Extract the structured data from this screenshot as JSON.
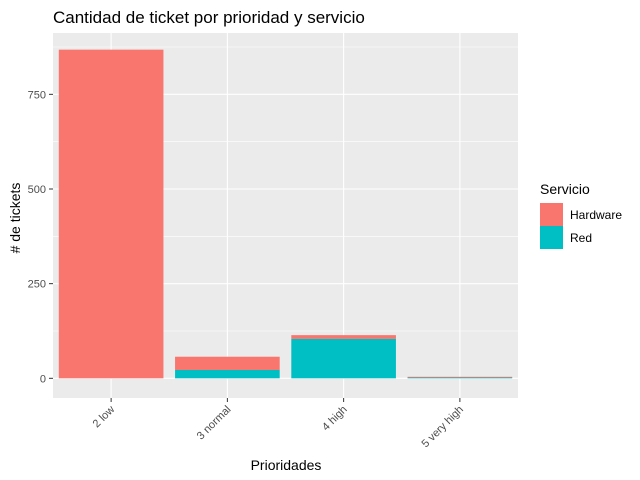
{
  "chart_data": {
    "type": "bar",
    "stacked": true,
    "title": "Cantidad de ticket por prioridad y servicio",
    "xlabel": "Prioridades",
    "ylabel": "# de tickets",
    "categories": [
      "2 low",
      "3 normal",
      "4 high",
      "5 very high"
    ],
    "series": [
      {
        "name": "Hardware",
        "color": "#F8766D",
        "values": [
          868,
          35,
          10,
          1
        ]
      },
      {
        "name": "Red",
        "color": "#00BFC4",
        "values": [
          0,
          22,
          104,
          3
        ]
      }
    ],
    "ylim": [
      -52,
      912
    ],
    "yticks": [
      0,
      250,
      500,
      750
    ],
    "grid": true,
    "legend": {
      "title": "Servicio",
      "position": "right"
    },
    "panel_background": "#EBEBEB",
    "grid_color": "#FFFFFF"
  }
}
